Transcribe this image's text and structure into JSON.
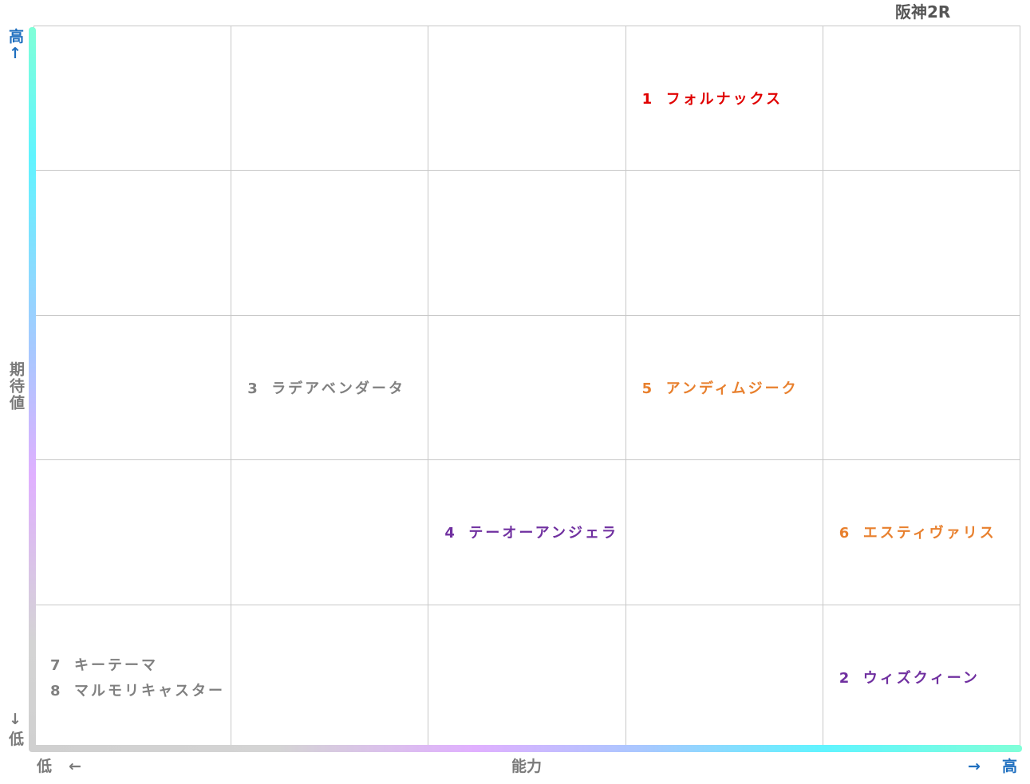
{
  "header": {
    "title": "阪神2R"
  },
  "axes": {
    "y": {
      "label": "期待値",
      "high": "高",
      "high_arrow": "↑",
      "low_arrow": "↓",
      "low": "低"
    },
    "x": {
      "label": "能力",
      "low": "低",
      "low_arrow": "←",
      "high_arrow": "→",
      "high": "高"
    }
  },
  "grid": {
    "rows": [
      [
        [],
        [],
        [],
        [
          {
            "number": "1",
            "name": "フォルナックス",
            "color": "#e00000"
          }
        ],
        []
      ],
      [
        [],
        [],
        [],
        [],
        []
      ],
      [
        [],
        [
          {
            "number": "3",
            "name": "ラデアベンダータ",
            "color": "#808080"
          }
        ],
        [],
        [
          {
            "number": "5",
            "name": "アンディムジーク",
            "color": "#e8802e"
          }
        ],
        []
      ],
      [
        [],
        [],
        [
          {
            "number": "4",
            "name": "テーオーアンジェラ",
            "color": "#7030a0"
          }
        ],
        [],
        [
          {
            "number": "6",
            "name": "エスティヴァリス",
            "color": "#e8802e"
          }
        ]
      ],
      [
        [
          {
            "number": "7",
            "name": "キーテーマ",
            "color": "#808080"
          },
          {
            "number": "8",
            "name": "マルモリキャスター",
            "color": "#808080"
          }
        ],
        [],
        [],
        [],
        [
          {
            "number": "2",
            "name": "ウィズクィーン",
            "color": "#7030a0"
          }
        ]
      ]
    ]
  }
}
